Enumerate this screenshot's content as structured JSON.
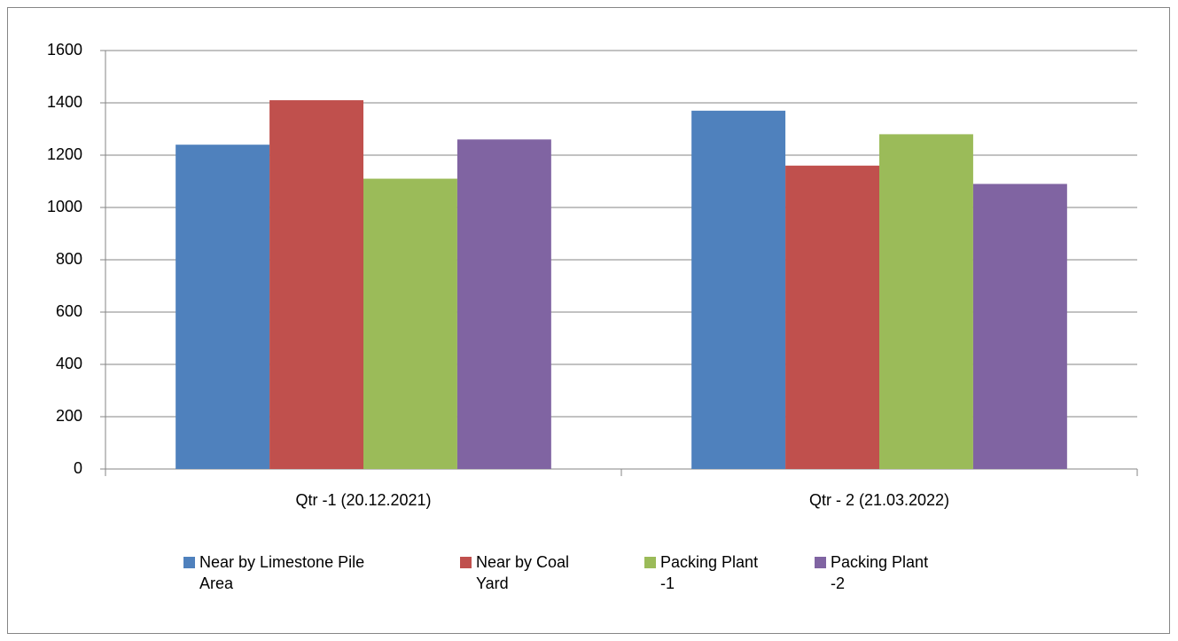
{
  "chart_data": {
    "type": "bar",
    "categories": [
      "Qtr -1 (20.12.2021)",
      "Qtr - 2 (21.03.2022)"
    ],
    "series": [
      {
        "name": "Near by Limestone Pile Area",
        "color": "#4f81bd",
        "values": [
          1240,
          1370
        ]
      },
      {
        "name": "Near by Coal Yard",
        "color": "#c0504d",
        "values": [
          1410,
          1160
        ]
      },
      {
        "name": "Packing Plant -1",
        "color": "#9bbb59",
        "values": [
          1110,
          1280
        ]
      },
      {
        "name": "Packing Plant -2",
        "color": "#8064a2",
        "values": [
          1260,
          1090
        ]
      }
    ],
    "ylim": [
      0,
      1600
    ],
    "yticks": [
      0,
      200,
      400,
      600,
      800,
      1000,
      1200,
      1400,
      1600
    ],
    "grid": true,
    "legend": "bottom"
  }
}
